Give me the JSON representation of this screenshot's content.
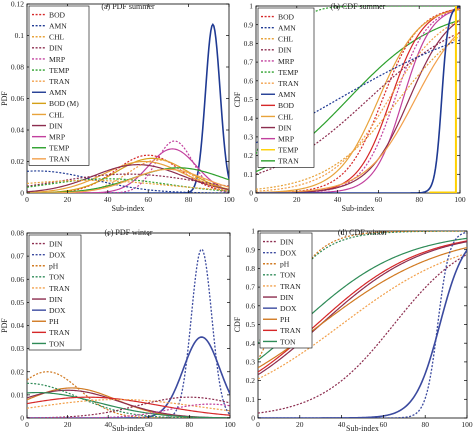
{
  "figure": {
    "colors": {
      "bod": "#d62728",
      "amn": "#1f3a93",
      "chl": "#e8a33b",
      "din": "#8c2d4f",
      "mrp": "#c2409e",
      "temp": "#2ca02c",
      "tran": "#f2a04b",
      "bod_m": "#d4a017",
      "dox": "#3b4a9f",
      "ph": "#d17a22",
      "ton": "#2e8b57",
      "yellow": "#ffd000"
    }
  },
  "chart_data": [
    {
      "id": "a",
      "type": "line",
      "title": "(a) PDF summer",
      "xlabel": "Sub-index",
      "ylabel": "PDF",
      "xlim": [
        0,
        100
      ],
      "ylim": [
        0,
        0.12
      ],
      "xticks": [
        "0",
        "20",
        "40",
        "60",
        "80",
        "100"
      ],
      "yticks": [
        "0",
        "0.02",
        "0.04",
        "0.06",
        "0.08",
        "0.1",
        "0.12"
      ],
      "legend_position": "top-left",
      "legend": [
        {
          "label": "BOD",
          "color_key": "bod",
          "dash": "dot"
        },
        {
          "label": "AMN",
          "color_key": "amn",
          "dash": "dot"
        },
        {
          "label": "CHL",
          "color_key": "chl",
          "dash": "dot"
        },
        {
          "label": "DIN",
          "color_key": "din",
          "dash": "dot"
        },
        {
          "label": "MRP",
          "color_key": "mrp",
          "dash": "dot"
        },
        {
          "label": "TEMP",
          "color_key": "temp",
          "dash": "dot"
        },
        {
          "label": "TRAN",
          "color_key": "tran",
          "dash": "dot"
        },
        {
          "label": "AMN",
          "color_key": "amn",
          "dash": "solid"
        },
        {
          "label": "BOD (M)",
          "color_key": "bod_m",
          "dash": "solid"
        },
        {
          "label": "CHL",
          "color_key": "chl",
          "dash": "solid"
        },
        {
          "label": "DIN",
          "color_key": "din",
          "dash": "solid"
        },
        {
          "label": "MRP",
          "color_key": "mrp",
          "dash": "solid"
        },
        {
          "label": "TEMP",
          "color_key": "temp",
          "dash": "solid"
        },
        {
          "label": "TRAN",
          "color_key": "tran",
          "dash": "solid"
        }
      ],
      "curves": [
        {
          "kind": "gauss",
          "mu": 92,
          "sigma": 3.6,
          "peak": 0.107,
          "color_key": "amn",
          "dash": "solid",
          "width": 1.6
        },
        {
          "kind": "gauss",
          "mu": 73,
          "sigma": 9,
          "peak": 0.033,
          "color_key": "mrp",
          "dash": "dot",
          "width": 1.2
        },
        {
          "kind": "gauss",
          "mu": 72,
          "sigma": 12,
          "peak": 0.028,
          "color_key": "mrp",
          "dash": "solid",
          "width": 1.2
        },
        {
          "kind": "gauss",
          "mu": 60,
          "sigma": 16,
          "peak": 0.024,
          "color_key": "bod",
          "dash": "dot",
          "width": 1.2
        },
        {
          "kind": "gauss",
          "mu": 62,
          "sigma": 18,
          "peak": 0.022,
          "color_key": "bod_m",
          "dash": "solid",
          "width": 1.2
        },
        {
          "kind": "gauss",
          "mu": 58,
          "sigma": 20,
          "peak": 0.02,
          "color_key": "chl",
          "dash": "solid",
          "width": 1.2
        },
        {
          "kind": "gauss",
          "mu": 55,
          "sigma": 22,
          "peak": 0.018,
          "color_key": "din",
          "dash": "solid",
          "width": 1.2
        },
        {
          "kind": "gauss",
          "mu": 65,
          "sigma": 15,
          "peak": 0.021,
          "color_key": "tran",
          "dash": "dot",
          "width": 1.2
        },
        {
          "kind": "gauss",
          "mu": 5,
          "sigma": 28,
          "peak": 0.014,
          "color_key": "amn",
          "dash": "dot",
          "width": 1.2
        },
        {
          "kind": "gauss",
          "mu": 50,
          "sigma": 35,
          "peak": 0.012,
          "color_key": "din",
          "dash": "dot",
          "width": 1.2
        },
        {
          "kind": "gauss",
          "mu": 75,
          "sigma": 22,
          "peak": 0.016,
          "color_key": "temp",
          "dash": "solid",
          "width": 1.2
        },
        {
          "kind": "gauss",
          "mu": 40,
          "sigma": 30,
          "peak": 0.009,
          "color_key": "temp",
          "dash": "dot",
          "width": 1.2
        },
        {
          "kind": "gauss",
          "mu": 30,
          "sigma": 40,
          "peak": 0.008,
          "color_key": "chl",
          "dash": "dot",
          "width": 1.2
        },
        {
          "kind": "gauss",
          "mu": 70,
          "sigma": 18,
          "peak": 0.015,
          "color_key": "tran",
          "dash": "solid",
          "width": 1.2
        }
      ]
    },
    {
      "id": "b",
      "type": "line",
      "title": "(b) CDF summer",
      "xlabel": "Sub-index",
      "ylabel": "CDF",
      "xlim": [
        0,
        100
      ],
      "ylim": [
        0,
        1
      ],
      "xticks": [
        "0",
        "20",
        "40",
        "60",
        "80",
        "100"
      ],
      "yticks": [
        "0",
        "0.1",
        "0.2",
        "0.3",
        "0.4",
        "0.5",
        "0.6",
        "0.7",
        "0.8",
        "0.9",
        "1"
      ],
      "legend_position": "top-left",
      "legend": [
        {
          "label": "BOD",
          "color_key": "bod",
          "dash": "dot"
        },
        {
          "label": "AMN",
          "color_key": "amn",
          "dash": "dot"
        },
        {
          "label": "CHL",
          "color_key": "chl",
          "dash": "dot"
        },
        {
          "label": "DIN",
          "color_key": "din",
          "dash": "dot"
        },
        {
          "label": "MRP",
          "color_key": "mrp",
          "dash": "dot"
        },
        {
          "label": "TEMP",
          "color_key": "temp",
          "dash": "dot"
        },
        {
          "label": "TRAN",
          "color_key": "tran",
          "dash": "dot"
        },
        {
          "label": "AMN",
          "color_key": "amn",
          "dash": "solid"
        },
        {
          "label": "BOD",
          "color_key": "bod",
          "dash": "solid"
        },
        {
          "label": "CHL",
          "color_key": "chl",
          "dash": "solid"
        },
        {
          "label": "DIN",
          "color_key": "din",
          "dash": "solid"
        },
        {
          "label": "MRP",
          "color_key": "mrp",
          "dash": "solid"
        },
        {
          "label": "TEMP",
          "color_key": "yellow",
          "dash": "solid"
        },
        {
          "label": "TRAN",
          "color_key": "temp",
          "dash": "solid"
        }
      ],
      "curves": [
        {
          "kind": "logistic",
          "mu": 8,
          "s": 6,
          "lo": 0,
          "hi": 1,
          "color_key": "temp",
          "dash": "dot",
          "width": 1.2
        },
        {
          "kind": "logistic",
          "mu": 45,
          "s": 22,
          "lo": 0,
          "hi": 1,
          "color_key": "temp",
          "dash": "solid",
          "width": 1.2
        },
        {
          "kind": "logistic",
          "mu": 62,
          "s": 9,
          "lo": 0,
          "hi": 1,
          "color_key": "bod",
          "dash": "dot",
          "width": 1.2
        },
        {
          "kind": "logistic",
          "mu": 66,
          "s": 8,
          "lo": 0,
          "hi": 1,
          "color_key": "bod",
          "dash": "solid",
          "width": 1.2
        },
        {
          "kind": "logistic",
          "mu": 68,
          "s": 8,
          "lo": 0,
          "hi": 1,
          "color_key": "mrp",
          "dash": "dot",
          "width": 1.2
        },
        {
          "kind": "logistic",
          "mu": 72,
          "s": 7,
          "lo": 0,
          "hi": 1,
          "color_key": "mrp",
          "dash": "solid",
          "width": 1.2
        },
        {
          "kind": "logistic",
          "mu": 60,
          "s": 10,
          "lo": 0,
          "hi": 1,
          "color_key": "chl",
          "dash": "solid",
          "width": 1.2
        },
        {
          "kind": "logistic",
          "mu": 75,
          "s": 10,
          "lo": 0,
          "hi": 1,
          "color_key": "din",
          "dash": "solid",
          "width": 1.2
        },
        {
          "kind": "logistic",
          "mu": 65,
          "s": 14,
          "lo": 0,
          "hi": 1,
          "color_key": "tran",
          "dash": "dot",
          "width": 1.2
        },
        {
          "kind": "logistic",
          "mu": 78,
          "s": 12,
          "lo": 0,
          "hi": 1,
          "color_key": "tran",
          "dash": "solid",
          "width": 1.2
        },
        {
          "kind": "logistic",
          "mu": 70,
          "s": 18,
          "lo": 0,
          "hi": 1,
          "color_key": "chl",
          "dash": "dot",
          "width": 1.2
        },
        {
          "kind": "logistic",
          "mu": 55,
          "s": 25,
          "lo": 0,
          "hi": 1,
          "color_key": "din",
          "dash": "dot",
          "width": 1.2
        },
        {
          "kind": "logistic",
          "mu": 91,
          "s": 1.6,
          "lo": 0,
          "hi": 1,
          "color_key": "amn",
          "dash": "solid",
          "width": 1.6
        },
        {
          "kind": "logistic",
          "mu": 40,
          "s": 40,
          "lo": 0,
          "hi": 1,
          "color_key": "amn",
          "dash": "dot",
          "width": 1.2
        },
        {
          "kind": "polyline",
          "points": [
            [
              85,
              0.003
            ],
            [
              98,
              0.003
            ],
            [
              98,
              1
            ]
          ],
          "color_key": "yellow",
          "dash": "solid",
          "width": 2
        }
      ]
    },
    {
      "id": "c",
      "type": "line",
      "title": "(c) PDF winter",
      "xlabel": "Sub-index",
      "ylabel": "PDF",
      "xlim": [
        0,
        100
      ],
      "ylim": [
        0,
        0.08
      ],
      "xticks": [
        "0",
        "20",
        "40",
        "60",
        "80",
        "100"
      ],
      "yticks": [
        "0",
        "0.01",
        "0.02",
        "0.03",
        "0.04",
        "0.05",
        "0.06",
        "0.07",
        "0.08"
      ],
      "legend_position": "top-left",
      "legend": [
        {
          "label": "DIN",
          "color_key": "din",
          "dash": "dot"
        },
        {
          "label": "DOX",
          "color_key": "dox",
          "dash": "dot"
        },
        {
          "label": "pH",
          "color_key": "ph",
          "dash": "dot"
        },
        {
          "label": "TON",
          "color_key": "ton",
          "dash": "dot"
        },
        {
          "label": "TRAN",
          "color_key": "tran",
          "dash": "dot"
        },
        {
          "label": "DIN",
          "color_key": "din",
          "dash": "solid"
        },
        {
          "label": "DOX",
          "color_key": "dox",
          "dash": "solid"
        },
        {
          "label": "PH",
          "color_key": "ph",
          "dash": "solid"
        },
        {
          "label": "TRAN",
          "color_key": "bod",
          "dash": "solid"
        },
        {
          "label": "TON",
          "color_key": "ton",
          "dash": "solid"
        }
      ],
      "curves": [
        {
          "kind": "gauss",
          "mu": 86,
          "sigma": 5,
          "peak": 0.073,
          "color_key": "dox",
          "dash": "dot",
          "width": 1.3
        },
        {
          "kind": "gauss",
          "mu": 86,
          "sigma": 9,
          "peak": 0.035,
          "color_key": "dox",
          "dash": "solid",
          "width": 1.6
        },
        {
          "kind": "gauss",
          "mu": 10,
          "sigma": 16,
          "peak": 0.02,
          "color_key": "ph",
          "dash": "dot",
          "width": 1.2
        },
        {
          "kind": "gauss",
          "mu": 22,
          "sigma": 22,
          "peak": 0.013,
          "color_key": "ph",
          "dash": "solid",
          "width": 1.2
        },
        {
          "kind": "gauss",
          "mu": 20,
          "sigma": 25,
          "peak": 0.012,
          "color_key": "din",
          "dash": "solid",
          "width": 1.2
        },
        {
          "kind": "gauss",
          "mu": 0,
          "sigma": 25,
          "peak": 0.015,
          "color_key": "ton",
          "dash": "dot",
          "width": 1.2
        },
        {
          "kind": "gauss",
          "mu": 5,
          "sigma": 30,
          "peak": 0.011,
          "color_key": "ton",
          "dash": "solid",
          "width": 1.2
        },
        {
          "kind": "gauss",
          "mu": 30,
          "sigma": 35,
          "peak": 0.009,
          "color_key": "bod",
          "dash": "solid",
          "width": 1.2
        },
        {
          "kind": "gauss",
          "mu": 45,
          "sigma": 40,
          "peak": 0.008,
          "color_key": "tran",
          "dash": "dot",
          "width": 1.2
        },
        {
          "kind": "gauss",
          "mu": 80,
          "sigma": 25,
          "peak": 0.009,
          "color_key": "din",
          "dash": "dot",
          "width": 1.2
        },
        {
          "kind": "gauss",
          "mu": 90,
          "sigma": 20,
          "peak": 0.006,
          "color_key": "mrp",
          "dash": "dot",
          "width": 1.2
        }
      ]
    },
    {
      "id": "d",
      "type": "line",
      "title": "(d) CDF winter",
      "xlabel": "Sub-index",
      "ylabel": "CDF",
      "xlim": [
        0,
        100
      ],
      "ylim": [
        0,
        1
      ],
      "xticks": [
        "0",
        "20",
        "40",
        "60",
        "80",
        "100"
      ],
      "yticks": [
        "0",
        "0.1",
        "0.2",
        "0.3",
        "0.4",
        "0.5",
        "0.6",
        "0.7",
        "0.8",
        "0.9",
        "1"
      ],
      "legend_position": "top-left",
      "legend": [
        {
          "label": "DIN",
          "color_key": "din",
          "dash": "dot"
        },
        {
          "label": "DOX",
          "color_key": "dox",
          "dash": "dot"
        },
        {
          "label": "pH",
          "color_key": "ph",
          "dash": "dot"
        },
        {
          "label": "TON",
          "color_key": "ton",
          "dash": "dot"
        },
        {
          "label": "TRAN",
          "color_key": "tran",
          "dash": "dot"
        },
        {
          "label": "DIN",
          "color_key": "din",
          "dash": "solid"
        },
        {
          "label": "DOX",
          "color_key": "dox",
          "dash": "solid"
        },
        {
          "label": "PH",
          "color_key": "ph",
          "dash": "solid"
        },
        {
          "label": "TRAN",
          "color_key": "bod",
          "dash": "solid"
        },
        {
          "label": "TON",
          "color_key": "ton",
          "dash": "solid"
        }
      ],
      "curves": [
        {
          "kind": "logistic",
          "mu": 5,
          "s": 12,
          "lo": 0,
          "hi": 1,
          "color_key": "ton",
          "dash": "dot",
          "width": 1.2
        },
        {
          "kind": "logistic",
          "mu": 8,
          "s": 10,
          "lo": 0,
          "hi": 1,
          "color_key": "ph",
          "dash": "dot",
          "width": 1.2
        },
        {
          "kind": "logistic",
          "mu": 20,
          "s": 25,
          "lo": 0,
          "hi": 1,
          "color_key": "ton",
          "dash": "solid",
          "width": 1.2
        },
        {
          "kind": "logistic",
          "mu": 28,
          "s": 25,
          "lo": 0,
          "hi": 1,
          "color_key": "bod",
          "dash": "solid",
          "width": 1.2
        },
        {
          "kind": "logistic",
          "mu": 30,
          "s": 25,
          "lo": 0,
          "hi": 1,
          "color_key": "din",
          "dash": "solid",
          "width": 1.2
        },
        {
          "kind": "logistic",
          "mu": 40,
          "s": 30,
          "lo": 0,
          "hi": 1,
          "color_key": "tran",
          "dash": "dot",
          "width": 1.2
        },
        {
          "kind": "logistic",
          "mu": 30,
          "s": 30,
          "lo": 0,
          "hi": 1,
          "color_key": "ph",
          "dash": "solid",
          "width": 1.2
        },
        {
          "kind": "logistic",
          "mu": 65,
          "s": 18,
          "lo": 0,
          "hi": 1,
          "color_key": "din",
          "dash": "dot",
          "width": 1.2
        },
        {
          "kind": "logistic",
          "mu": 86,
          "s": 2.8,
          "lo": 0,
          "hi": 1,
          "color_key": "dox",
          "dash": "dot",
          "width": 1.3
        },
        {
          "kind": "logistic",
          "mu": 87,
          "s": 6,
          "lo": 0,
          "hi": 1,
          "color_key": "dox",
          "dash": "solid",
          "width": 1.6
        }
      ]
    }
  ]
}
